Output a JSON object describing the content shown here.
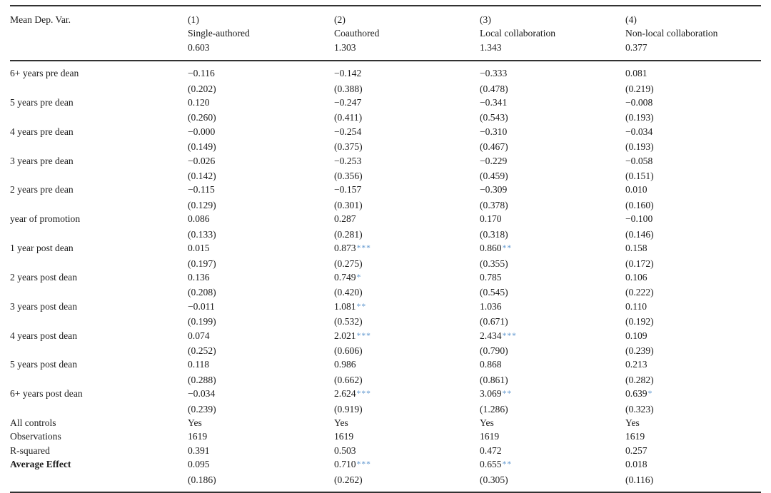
{
  "styles": {
    "significance_star_color": "#5f97cf",
    "text_color": "#1b1b1b",
    "rule_color": "#323232"
  },
  "table": {
    "header": {
      "row_label": "Mean Dep. Var.",
      "columns": [
        {
          "num": "(1)",
          "title": "Single-authored",
          "mean": "0.603"
        },
        {
          "num": "(2)",
          "title": "Coauthored",
          "mean": "1.303"
        },
        {
          "num": "(3)",
          "title": "Local collaboration",
          "mean": "1.343"
        },
        {
          "num": "(4)",
          "title": "Non-local collaboration",
          "mean": "0.377"
        }
      ]
    },
    "rows": [
      {
        "type": "coef",
        "label": "6+ years pre dean",
        "cells": [
          {
            "v": "−0.116",
            "stars": "",
            "se": "(0.202)"
          },
          {
            "v": "−0.142",
            "stars": "",
            "se": "(0.388)"
          },
          {
            "v": "−0.333",
            "stars": "",
            "se": "(0.478)"
          },
          {
            "v": "0.081",
            "stars": "",
            "se": "(0.219)"
          }
        ]
      },
      {
        "type": "coef",
        "label": "5 years pre dean",
        "cells": [
          {
            "v": "0.120",
            "stars": "",
            "se": "(0.260)"
          },
          {
            "v": "−0.247",
            "stars": "",
            "se": "(0.411)"
          },
          {
            "v": "−0.341",
            "stars": "",
            "se": "(0.543)"
          },
          {
            "v": "−0.008",
            "stars": "",
            "se": "(0.193)"
          }
        ]
      },
      {
        "type": "coef",
        "label": "4 years pre dean",
        "cells": [
          {
            "v": "−0.000",
            "stars": "",
            "se": "(0.149)"
          },
          {
            "v": "−0.254",
            "stars": "",
            "se": "(0.375)"
          },
          {
            "v": "−0.310",
            "stars": "",
            "se": "(0.467)"
          },
          {
            "v": "−0.034",
            "stars": "",
            "se": "(0.193)"
          }
        ]
      },
      {
        "type": "coef",
        "label": "3 years pre dean",
        "cells": [
          {
            "v": "−0.026",
            "stars": "",
            "se": "(0.142)"
          },
          {
            "v": "−0.253",
            "stars": "",
            "se": "(0.356)"
          },
          {
            "v": "−0.229",
            "stars": "",
            "se": "(0.459)"
          },
          {
            "v": "−0.058",
            "stars": "",
            "se": "(0.151)"
          }
        ]
      },
      {
        "type": "coef",
        "label": "2 years pre dean",
        "cells": [
          {
            "v": "−0.115",
            "stars": "",
            "se": "(0.129)"
          },
          {
            "v": "−0.157",
            "stars": "",
            "se": "(0.301)"
          },
          {
            "v": "−0.309",
            "stars": "",
            "se": "(0.378)"
          },
          {
            "v": "0.010",
            "stars": "",
            "se": "(0.160)"
          }
        ]
      },
      {
        "type": "coef",
        "label": "year of promotion",
        "cells": [
          {
            "v": "0.086",
            "stars": "",
            "se": "(0.133)"
          },
          {
            "v": "0.287",
            "stars": "",
            "se": "(0.281)"
          },
          {
            "v": "0.170",
            "stars": "",
            "se": "(0.318)"
          },
          {
            "v": "−0.100",
            "stars": "",
            "se": "(0.146)"
          }
        ]
      },
      {
        "type": "coef",
        "label": "1 year post dean",
        "cells": [
          {
            "v": "0.015",
            "stars": "",
            "se": "(0.197)"
          },
          {
            "v": "0.873",
            "stars": "***",
            "se": "(0.275)"
          },
          {
            "v": "0.860",
            "stars": "**",
            "se": "(0.355)"
          },
          {
            "v": "0.158",
            "stars": "",
            "se": "(0.172)"
          }
        ]
      },
      {
        "type": "coef",
        "label": "2 years post dean",
        "cells": [
          {
            "v": "0.136",
            "stars": "",
            "se": "(0.208)"
          },
          {
            "v": "0.749",
            "stars": "*",
            "se": "(0.420)"
          },
          {
            "v": "0.785",
            "stars": "",
            "se": "(0.545)"
          },
          {
            "v": "0.106",
            "stars": "",
            "se": "(0.222)"
          }
        ]
      },
      {
        "type": "coef",
        "label": "3 years post dean",
        "cells": [
          {
            "v": "−0.011",
            "stars": "",
            "se": "(0.199)"
          },
          {
            "v": "1.081",
            "stars": "**",
            "se": "(0.532)"
          },
          {
            "v": "1.036",
            "stars": "",
            "se": "(0.671)"
          },
          {
            "v": "0.110",
            "stars": "",
            "se": "(0.192)"
          }
        ]
      },
      {
        "type": "coef",
        "label": "4 years post dean",
        "cells": [
          {
            "v": "0.074",
            "stars": "",
            "se": "(0.252)"
          },
          {
            "v": "2.021",
            "stars": "***",
            "se": "(0.606)"
          },
          {
            "v": "2.434",
            "stars": "***",
            "se": "(0.790)"
          },
          {
            "v": "0.109",
            "stars": "",
            "se": "(0.239)"
          }
        ]
      },
      {
        "type": "coef",
        "label": "5 years post dean",
        "cells": [
          {
            "v": "0.118",
            "stars": "",
            "se": "(0.288)"
          },
          {
            "v": "0.986",
            "stars": "",
            "se": "(0.662)"
          },
          {
            "v": "0.868",
            "stars": "",
            "se": "(0.861)"
          },
          {
            "v": "0.213",
            "stars": "",
            "se": "(0.282)"
          }
        ]
      },
      {
        "type": "coef",
        "label": "6+ years post dean",
        "cells": [
          {
            "v": "−0.034",
            "stars": "",
            "se": "(0.239)"
          },
          {
            "v": "2.624",
            "stars": "***",
            "se": "(0.919)"
          },
          {
            "v": "3.069",
            "stars": "**",
            "se": "(1.286)"
          },
          {
            "v": "0.639",
            "stars": "*",
            "se": "(0.323)"
          }
        ]
      },
      {
        "type": "plain",
        "label": "All controls",
        "values": [
          "Yes",
          "Yes",
          "Yes",
          "Yes"
        ]
      },
      {
        "type": "plain",
        "label": "Observations",
        "values": [
          "1619",
          "1619",
          "1619",
          "1619"
        ]
      },
      {
        "type": "plain",
        "label": "R-squared",
        "values": [
          "0.391",
          "0.503",
          "0.472",
          "0.257"
        ]
      },
      {
        "type": "coef",
        "label": "Average Effect",
        "bold": true,
        "cells": [
          {
            "v": "0.095",
            "stars": "",
            "se": "(0.186)"
          },
          {
            "v": "0.710",
            "stars": "***",
            "se": "(0.262)"
          },
          {
            "v": "0.655",
            "stars": "**",
            "se": "(0.305)"
          },
          {
            "v": "0.018",
            "stars": "",
            "se": "(0.116)"
          }
        ]
      }
    ]
  }
}
